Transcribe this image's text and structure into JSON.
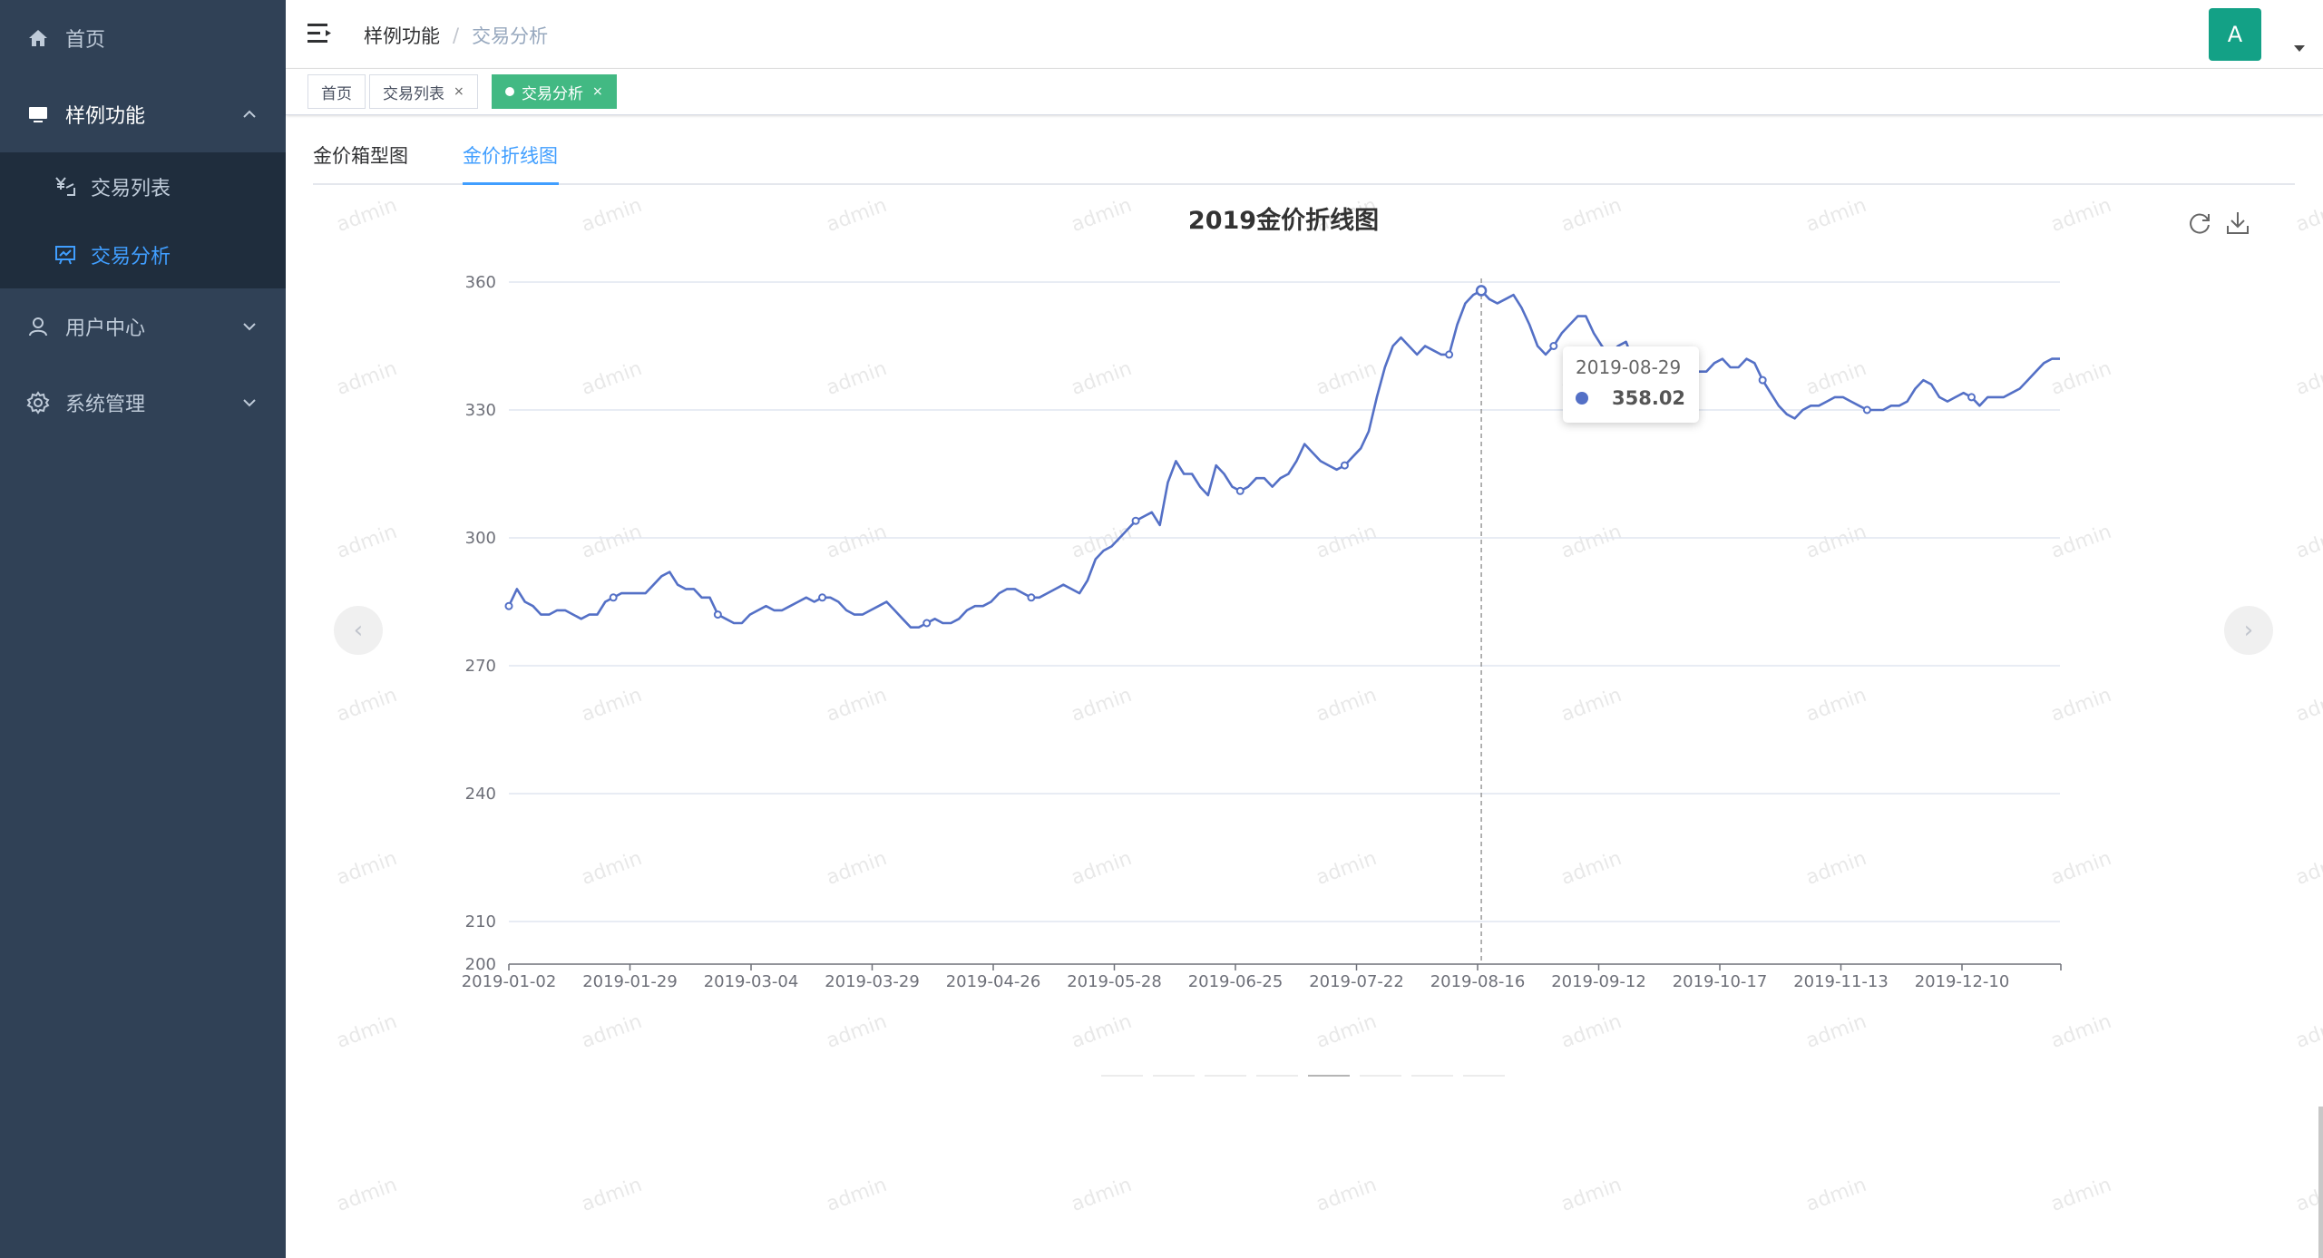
{
  "sidebar": {
    "items": [
      {
        "label": "首页",
        "icon": "home-icon"
      },
      {
        "label": "样例功能",
        "icon": "monitor-icon"
      },
      {
        "label": "用户中心",
        "icon": "user-icon"
      },
      {
        "label": "系统管理",
        "icon": "gear-icon"
      }
    ],
    "sub_items": [
      {
        "label": "交易列表",
        "icon": "yen-icon"
      },
      {
        "label": "交易分析",
        "icon": "chart-board-icon"
      }
    ],
    "colors": {
      "bg": "#304156",
      "sub_bg": "#1f2d3d",
      "text": "#bfcbd9",
      "active": "#409eff"
    }
  },
  "header": {
    "breadcrumb": [
      "样例功能",
      "交易分析"
    ],
    "breadcrumb_sep": "/",
    "avatar_letter": "A",
    "avatar_color": "#13a186"
  },
  "tags": [
    {
      "label": "首页",
      "closable": false
    },
    {
      "label": "交易列表",
      "closable": true
    },
    {
      "label": "交易分析",
      "closable": true,
      "active": true
    }
  ],
  "tag_close_glyph": "×",
  "tabs": [
    {
      "label": "金价箱型图"
    },
    {
      "label": "金价折线图",
      "active": true
    }
  ],
  "watermark_text": "admin",
  "carousel": {
    "prev": "‹",
    "next": "›",
    "indicator_count": 8,
    "active_indicator": 4
  },
  "tooltip": {
    "date": "2019-08-29",
    "value": "358.02"
  },
  "chart_data": {
    "type": "line",
    "title": "2019金价折线图",
    "xlabel": "",
    "ylabel": "",
    "ylim": [
      200,
      360
    ],
    "yticks": [
      200,
      210,
      240,
      270,
      300,
      330,
      360
    ],
    "xticks": [
      "2019-01-02",
      "2019-01-29",
      "2019-03-04",
      "2019-03-29",
      "2019-04-26",
      "2019-05-28",
      "2019-06-25",
      "2019-07-22",
      "2019-08-16",
      "2019-09-12",
      "2019-10-17",
      "2019-11-13",
      "2019-12-10"
    ],
    "grid": true,
    "series": [
      {
        "name": "金价",
        "color": "#5470c6",
        "values": [
          284,
          288,
          285,
          284,
          282,
          282,
          283,
          283,
          282,
          281,
          282,
          282,
          285,
          286,
          287,
          287,
          287,
          287,
          289,
          291,
          292,
          289,
          288,
          288,
          286,
          286,
          282,
          281,
          280,
          280,
          282,
          283,
          284,
          283,
          283,
          284,
          285,
          286,
          285,
          286,
          286,
          285,
          283,
          282,
          282,
          283,
          284,
          285,
          283,
          281,
          279,
          279,
          280,
          281,
          280,
          280,
          281,
          283,
          284,
          284,
          285,
          287,
          288,
          288,
          287,
          286,
          286,
          287,
          288,
          289,
          288,
          287,
          290,
          295,
          297,
          298,
          300,
          302,
          304,
          305,
          306,
          303,
          313,
          318,
          315,
          315,
          312,
          310,
          317,
          315,
          312,
          311,
          312,
          314,
          314,
          312,
          314,
          315,
          318,
          322,
          320,
          318,
          317,
          316,
          317,
          319,
          321,
          325,
          333,
          340,
          345,
          347,
          345,
          343,
          345,
          344,
          343,
          343,
          350,
          355,
          357,
          358,
          356,
          355,
          356,
          357,
          354,
          350,
          345,
          343,
          345,
          348,
          350,
          352,
          352,
          348,
          345,
          343,
          345,
          346,
          341,
          340,
          341,
          340,
          340,
          341,
          341,
          340,
          339,
          339,
          341,
          342,
          340,
          340,
          342,
          341,
          337,
          334,
          331,
          329,
          328,
          330,
          331,
          331,
          332,
          333,
          333,
          332,
          331,
          330,
          330,
          330,
          331,
          331,
          332,
          335,
          337,
          336,
          333,
          332,
          333,
          334,
          333,
          331,
          333,
          333,
          333,
          334,
          335,
          337,
          339,
          341,
          342,
          342
        ]
      }
    ],
    "tooltip_index": 121
  }
}
